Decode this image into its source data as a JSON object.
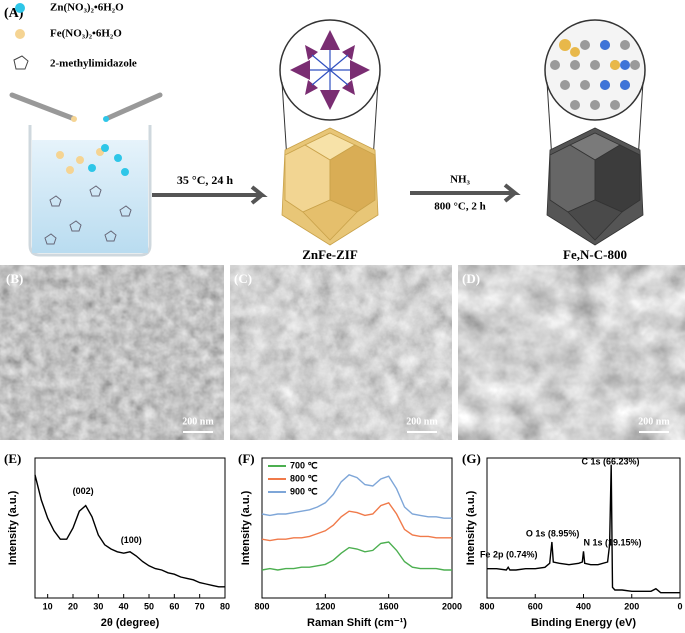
{
  "panel_a": {
    "label": "(A)",
    "reagents": [
      "Zn(NO₃)₂•6H₂O",
      "Fe(NO₃)₂•6H₂O",
      "2-methylimidazole"
    ],
    "step1": "35 °C, 24 h",
    "step2_gas": "NH₃",
    "step2_conditions": "800 °C, 2 h",
    "product1": "ZnFe-ZIF",
    "product2": "Fe,N-C-800"
  },
  "micrographs": [
    {
      "label": "(B)",
      "scale_bar": "200 nm"
    },
    {
      "label": "(C)",
      "scale_bar": "200 nm"
    },
    {
      "label": "(D)",
      "scale_bar": "200 nm"
    }
  ],
  "chart_data": [
    {
      "type": "line",
      "label": "(E)",
      "xlabel": "2θ (degree)",
      "ylabel": "Intensity (a.u.)",
      "color": "#000000",
      "x": [
        5,
        7.5,
        10,
        12.5,
        15,
        17.5,
        20,
        22.5,
        25,
        27.5,
        30,
        32.5,
        35,
        37.5,
        40,
        42.5,
        45,
        47.5,
        50,
        52.5,
        55,
        57.5,
        60,
        62.5,
        65,
        67.5,
        70,
        72.5,
        75,
        77.5,
        80
      ],
      "values": [
        88,
        70,
        57,
        48,
        42,
        42,
        50,
        62,
        66,
        58,
        45,
        38,
        35,
        33,
        32,
        33,
        30,
        26,
        23,
        21,
        20,
        18,
        17,
        15,
        14,
        13,
        11,
        10,
        9,
        8,
        8
      ],
      "xlim": [
        5,
        80
      ],
      "xticks": [
        10,
        20,
        30,
        40,
        50,
        60,
        70,
        80
      ],
      "ylim": [
        0,
        100
      ],
      "annotations": [
        "(002)",
        "(100)"
      ]
    },
    {
      "type": "line",
      "label": "(F)",
      "xlabel": "Raman Shift (cm⁻¹)",
      "ylabel": "Intensity (a.u.)",
      "x": [
        800,
        850,
        900,
        950,
        1000,
        1050,
        1100,
        1150,
        1200,
        1250,
        1300,
        1350,
        1400,
        1450,
        1500,
        1550,
        1600,
        1650,
        1700,
        1750,
        1800,
        1850,
        1900,
        1950,
        2000
      ],
      "series": [
        {
          "name": "700 ℃",
          "color": "#4caf50",
          "values": [
            20,
            21,
            20,
            21,
            21,
            22,
            22,
            23,
            24,
            27,
            32,
            36,
            35,
            33,
            34,
            39,
            40,
            34,
            26,
            22,
            21,
            21,
            21,
            20,
            20
          ]
        },
        {
          "name": "800 ℃",
          "color": "#f07a4a",
          "values": [
            42,
            41,
            42,
            42,
            43,
            43,
            44,
            46,
            48,
            52,
            58,
            62,
            61,
            59,
            60,
            66,
            68,
            60,
            49,
            45,
            44,
            44,
            43,
            43,
            43
          ]
        },
        {
          "name": "900 ℃",
          "color": "#7ea6d8",
          "values": [
            60,
            59,
            60,
            60,
            61,
            62,
            63,
            65,
            68,
            74,
            83,
            88,
            86,
            81,
            80,
            85,
            87,
            78,
            65,
            60,
            59,
            58,
            58,
            57,
            57
          ]
        }
      ],
      "xlim": [
        800,
        2000
      ],
      "xticks": [
        800,
        1200,
        1600,
        2000
      ],
      "ylim": [
        0,
        100
      ],
      "legend": "upper-left"
    },
    {
      "type": "line",
      "label": "(G)",
      "xlabel": "Binding Energy (eV)",
      "ylabel": "Intensity (a.u.)",
      "color": "#000000",
      "x": [
        800,
        760,
        720,
        712,
        705,
        680,
        640,
        600,
        560,
        540,
        531,
        525,
        500,
        460,
        420,
        405,
        400,
        395,
        370,
        340,
        300,
        292,
        285,
        280,
        270,
        240,
        200,
        160,
        120,
        100,
        80,
        40,
        0
      ],
      "values": [
        22,
        22,
        21,
        23,
        21,
        21,
        22,
        22,
        23,
        26,
        42,
        27,
        26,
        25,
        26,
        27,
        35,
        26,
        25,
        25,
        27,
        40,
        100,
        8,
        6,
        6,
        5,
        5,
        5,
        7,
        4,
        4,
        4
      ],
      "xlim": [
        800,
        0
      ],
      "xticks": [
        800,
        600,
        400,
        200,
        0
      ],
      "ylim": [
        0,
        105
      ],
      "annotations": [
        "C 1s (66.23%)",
        "O 1s (8.95%)",
        "N 1s (19.15%)",
        "Fe 2p (0.74%)"
      ]
    }
  ]
}
